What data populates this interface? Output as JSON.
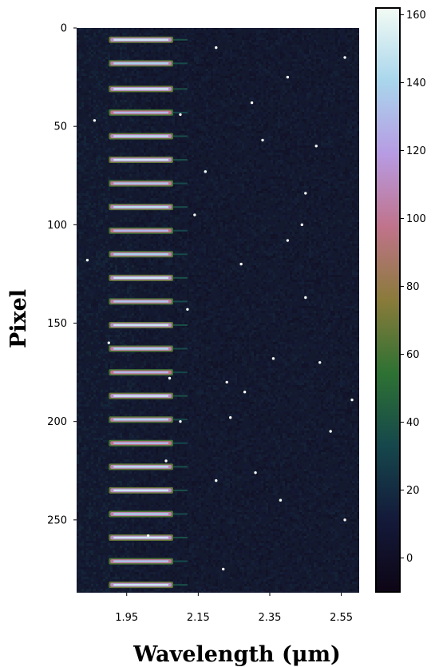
{
  "chart_data": {
    "type": "heatmap",
    "title": "",
    "xlabel": "Wavelength (μm)",
    "ylabel": "Pixel",
    "xlim": [
      1.81,
      2.6
    ],
    "ylim": [
      0,
      287
    ],
    "y_inverted": true,
    "xticks": [
      1.95,
      2.15,
      2.35,
      2.55
    ],
    "xtick_labels": [
      "1.95",
      "2.15",
      "2.35",
      "2.55"
    ],
    "yticks": [
      0,
      50,
      100,
      150,
      200,
      250
    ],
    "ytick_labels": [
      "0",
      "50",
      "100",
      "150",
      "200",
      "250"
    ],
    "colorbar": {
      "range": [
        -10,
        162
      ],
      "ticks": [
        0,
        20,
        40,
        60,
        80,
        100,
        120,
        140,
        160
      ],
      "tick_labels": [
        "0",
        "20",
        "40",
        "60",
        "80",
        "100",
        "120",
        "140",
        "160"
      ],
      "colormap": "cubehelix-like (black → navy → teal → green → olive → rose → violet → light blue → white)",
      "colors": [
        "#0d0515",
        "#141a3a",
        "#15474c",
        "#2e7233",
        "#8a7b3a",
        "#c0738b",
        "#b79be3",
        "#a9d6ec",
        "#f3fbf4"
      ]
    },
    "background_level": 8,
    "spectral_traces": {
      "description": "bright horizontal emission-line traces in the leftmost columns",
      "x_start": 1.9,
      "x_end": 2.08,
      "faint_tail_end": 2.12,
      "rows": [
        6,
        18,
        31,
        43,
        55,
        67,
        79,
        91,
        103,
        115,
        127,
        139,
        151,
        163,
        175,
        187,
        199,
        211,
        223,
        235,
        247,
        259,
        271,
        283
      ],
      "peak_values": [
        150,
        140,
        150,
        130,
        145,
        150,
        135,
        145,
        130,
        140,
        150,
        135,
        150,
        140,
        130,
        150,
        140,
        130,
        145,
        150,
        140,
        150,
        135,
        150
      ]
    },
    "hot_pixels": [
      [
        2.2,
        10
      ],
      [
        2.4,
        25
      ],
      [
        2.1,
        44
      ],
      [
        1.86,
        47
      ],
      [
        2.3,
        38
      ],
      [
        2.48,
        60
      ],
      [
        2.56,
        15
      ],
      [
        2.27,
        120
      ],
      [
        2.45,
        84
      ],
      [
        2.14,
        95
      ],
      [
        2.36,
        168
      ],
      [
        1.84,
        118
      ],
      [
        2.23,
        180
      ],
      [
        2.28,
        185
      ],
      [
        2.1,
        200
      ],
      [
        2.24,
        198
      ],
      [
        2.45,
        137
      ],
      [
        2.52,
        205
      ],
      [
        2.38,
        240
      ],
      [
        2.2,
        230
      ],
      [
        2.56,
        250
      ],
      [
        2.31,
        226
      ],
      [
        2.06,
        220
      ],
      [
        1.9,
        160
      ],
      [
        2.17,
        73
      ],
      [
        2.12,
        143
      ],
      [
        2.49,
        170
      ],
      [
        2.33,
        57
      ],
      [
        2.22,
        275
      ],
      [
        2.58,
        189
      ],
      [
        2.01,
        258
      ],
      [
        2.4,
        108
      ],
      [
        2.07,
        178
      ],
      [
        2.44,
        100
      ]
    ]
  }
}
